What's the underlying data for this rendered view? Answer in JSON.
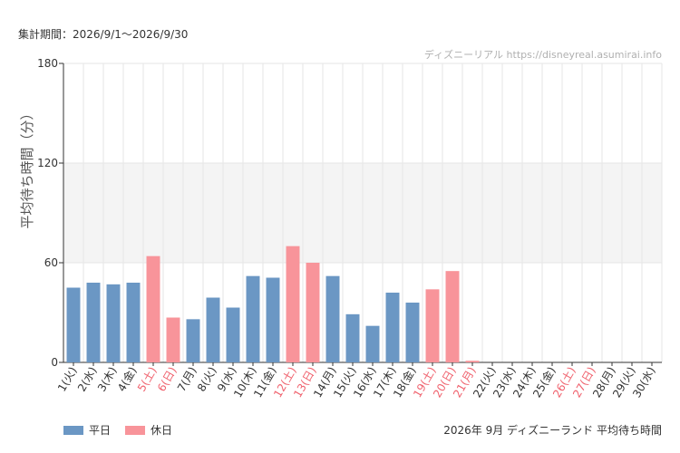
{
  "period_label": "集計期間：2026/9/1〜2026/9/30",
  "watermark": "ディズニーリアル https://disneyreal.asumirai.info",
  "caption": "2026年 9月 ディズニーランド 平均待ち時間",
  "colors": {
    "weekday": "#6b97c4",
    "holiday": "#f8949a",
    "holiday_label": "#f0626e",
    "weekday_label": "#333333",
    "band": "#f4f4f4",
    "grid": "#e6e6e6"
  },
  "chart_data": {
    "type": "bar",
    "title": "",
    "xlabel": "",
    "ylabel": "平均待ち時間（分）",
    "ylim": [
      0,
      180
    ],
    "yticks": [
      0,
      60,
      120,
      180
    ],
    "highlight_band": [
      60,
      120
    ],
    "grid": true,
    "legend_position": "bottom-left",
    "legend": [
      {
        "label": "平日",
        "key": "weekday"
      },
      {
        "label": "休日",
        "key": "holiday"
      }
    ],
    "categories": [
      "1(火)",
      "2(水)",
      "3(木)",
      "4(金)",
      "5(土)",
      "6(日)",
      "7(月)",
      "8(火)",
      "9(水)",
      "10(木)",
      "11(金)",
      "12(土)",
      "13(日)",
      "14(月)",
      "15(火)",
      "16(水)",
      "17(木)",
      "18(金)",
      "19(土)",
      "20(日)",
      "21(月)",
      "22(火)",
      "23(水)",
      "24(木)",
      "25(金)",
      "26(土)",
      "27(日)",
      "28(月)",
      "29(火)",
      "30(水)"
    ],
    "types": [
      "weekday",
      "weekday",
      "weekday",
      "weekday",
      "holiday",
      "holiday",
      "weekday",
      "weekday",
      "weekday",
      "weekday",
      "weekday",
      "holiday",
      "holiday",
      "weekday",
      "weekday",
      "weekday",
      "weekday",
      "weekday",
      "holiday",
      "holiday",
      "holiday",
      "weekday",
      "weekday",
      "weekday",
      "weekday",
      "holiday",
      "holiday",
      "weekday",
      "weekday",
      "weekday"
    ],
    "values": [
      45,
      48,
      47,
      48,
      64,
      27,
      26,
      39,
      33,
      52,
      51,
      70,
      60,
      52,
      29,
      22,
      42,
      36,
      44,
      55,
      1,
      0,
      0,
      0,
      0,
      0,
      0,
      0,
      0,
      0
    ]
  }
}
